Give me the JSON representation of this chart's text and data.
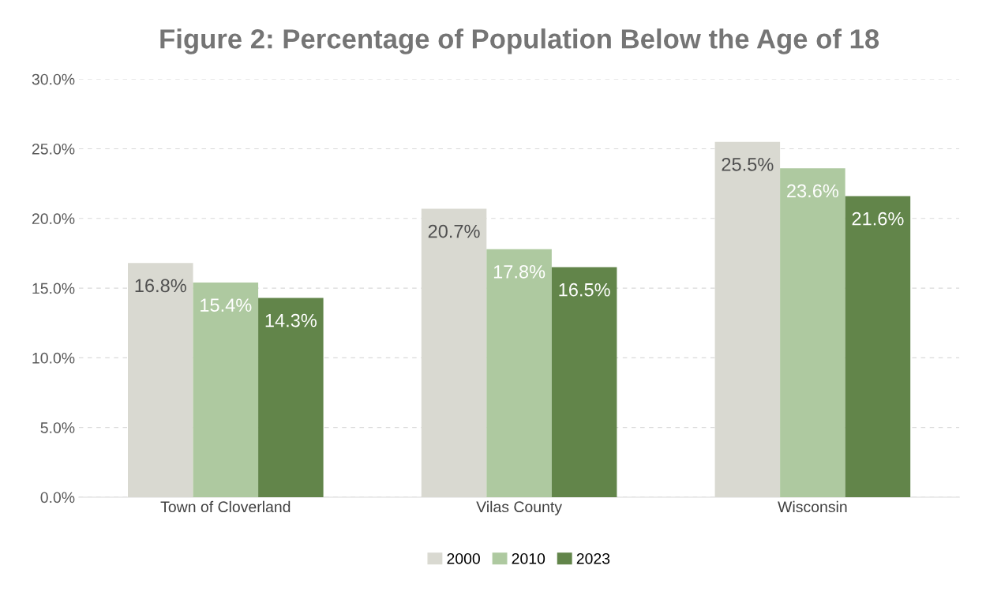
{
  "chart_data": {
    "type": "bar",
    "title": "Figure 2: Percentage of Population Below the Age of 18",
    "categories": [
      "Town of Cloverland",
      "Vilas County",
      "Wisconsin"
    ],
    "series": [
      {
        "name": "2000",
        "color": "#d9d9d1",
        "values": [
          16.8,
          20.7,
          25.5
        ],
        "value_labels": [
          "16.8%",
          "20.7%",
          "25.5%"
        ]
      },
      {
        "name": "2010",
        "color": "#aec9a0",
        "values": [
          15.4,
          17.8,
          23.6
        ],
        "value_labels": [
          "15.4%",
          "17.8%",
          "23.6%"
        ]
      },
      {
        "name": "2023",
        "color": "#62854a",
        "values": [
          14.3,
          16.5,
          21.6
        ],
        "value_labels": [
          "14.3%",
          "16.5%",
          "21.6%"
        ]
      }
    ],
    "ylim": [
      0,
      30
    ],
    "yticks": [
      {
        "value": 0,
        "label": "0.0%"
      },
      {
        "value": 5,
        "label": "5.0%"
      },
      {
        "value": 10,
        "label": "10.0%"
      },
      {
        "value": 15,
        "label": "15.0%"
      },
      {
        "value": 20,
        "label": "20.0%"
      },
      {
        "value": 25,
        "label": "25.0%"
      },
      {
        "value": 30,
        "label": "30.0%"
      }
    ],
    "grid": "y",
    "legend": "bottom"
  }
}
